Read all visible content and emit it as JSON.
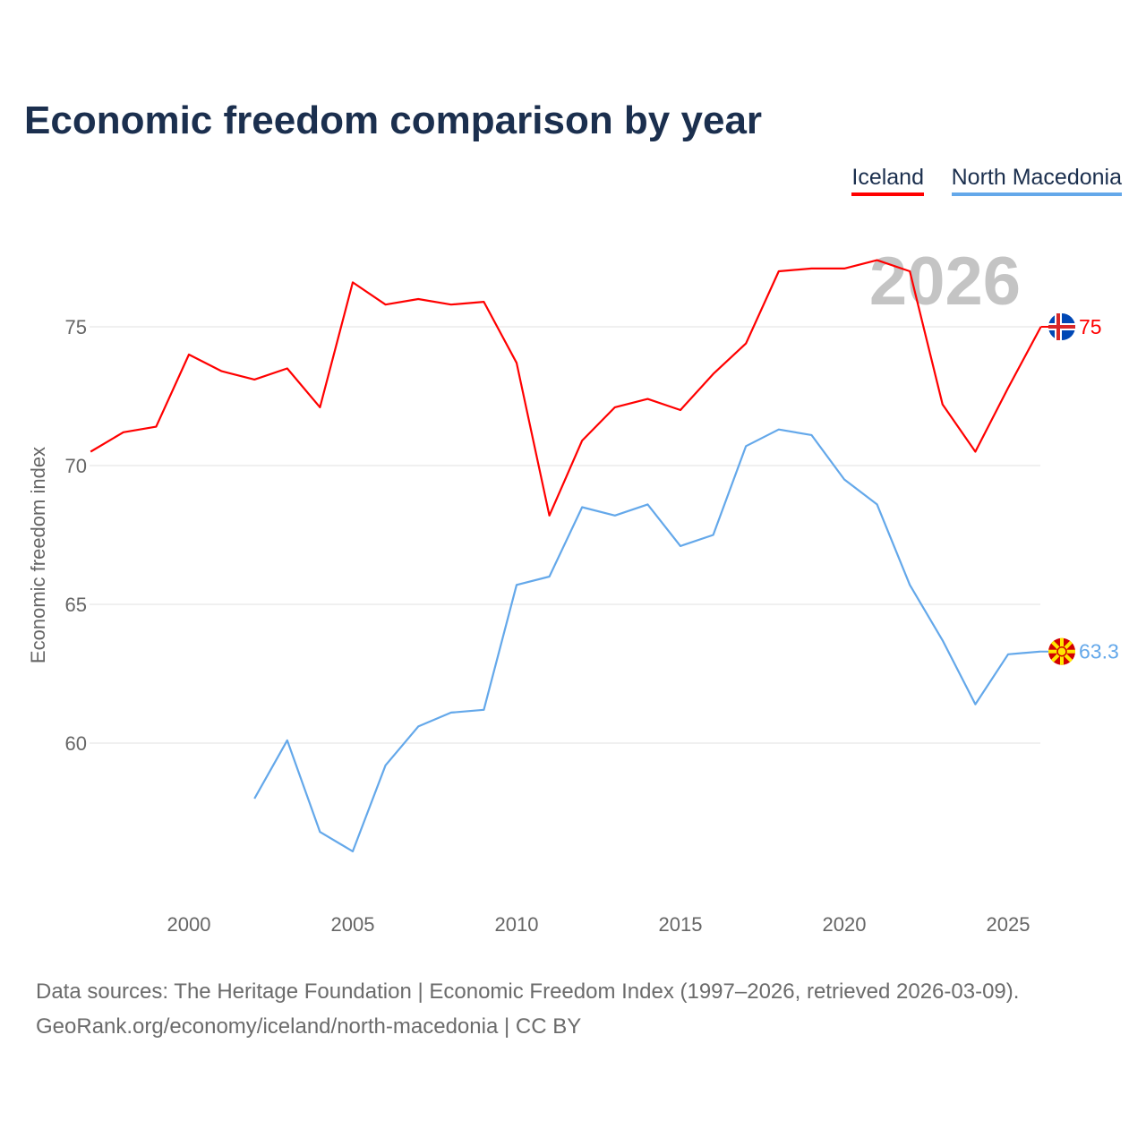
{
  "title": "Economic freedom comparison by year",
  "watermark_year": "2026",
  "footer": {
    "line1": "Data sources: The Heritage Foundation | Economic Freedom Index (1997–2026, retrieved 2026-03-09).",
    "line2": "GeoRank.org/economy/iceland/north-macedonia | CC BY"
  },
  "chart_data": {
    "type": "line",
    "title": "Economic freedom comparison by year",
    "xlabel": "",
    "ylabel": "Economic freedom index",
    "xlim": [
      1997,
      2026
    ],
    "ylim": [
      55,
      79
    ],
    "xticks": [
      2000,
      2005,
      2010,
      2015,
      2020,
      2025
    ],
    "yticks": [
      60,
      65,
      70,
      75
    ],
    "grid": true,
    "legend": "top-right",
    "series": [
      {
        "name": "Iceland",
        "color": "#ff0000",
        "flag": "iceland-flag",
        "end_label": "75",
        "x": [
          1997,
          1998,
          1999,
          2000,
          2001,
          2002,
          2003,
          2004,
          2005,
          2006,
          2007,
          2008,
          2009,
          2010,
          2011,
          2012,
          2013,
          2014,
          2015,
          2016,
          2017,
          2018,
          2019,
          2020,
          2021,
          2022,
          2023,
          2024,
          2025,
          2026
        ],
        "values": [
          70.5,
          71.2,
          71.4,
          74.0,
          73.4,
          73.1,
          73.5,
          72.1,
          76.6,
          75.8,
          76.0,
          75.8,
          75.9,
          73.7,
          68.2,
          70.9,
          72.1,
          72.4,
          72.0,
          73.3,
          74.4,
          77.0,
          77.1,
          77.1,
          77.4,
          77.0,
          72.2,
          70.5,
          72.8,
          75.0
        ]
      },
      {
        "name": "North Macedonia",
        "color": "#64a8ea",
        "flag": "north-macedonia-flag",
        "end_label": "63.3",
        "x": [
          2002,
          2003,
          2004,
          2005,
          2006,
          2007,
          2008,
          2009,
          2010,
          2011,
          2012,
          2013,
          2014,
          2015,
          2016,
          2017,
          2018,
          2019,
          2020,
          2021,
          2022,
          2023,
          2024,
          2025,
          2026
        ],
        "values": [
          58.0,
          60.1,
          56.8,
          56.1,
          59.2,
          60.6,
          61.1,
          61.2,
          65.7,
          66.0,
          68.5,
          68.2,
          68.6,
          67.1,
          67.5,
          70.7,
          71.3,
          71.1,
          69.5,
          68.6,
          65.7,
          63.7,
          61.4,
          63.2,
          63.3
        ]
      }
    ]
  }
}
